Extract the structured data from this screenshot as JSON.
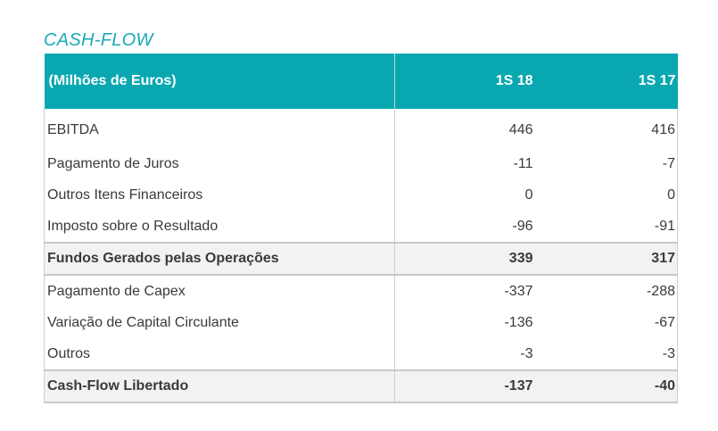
{
  "section_title": "CASH-FLOW",
  "table": {
    "header": {
      "label": "(Milhões de Euros)",
      "col_a": "1S 18",
      "col_b": "1S 17"
    },
    "rows": [
      {
        "label": "EBITDA",
        "a": "446",
        "b": "416"
      },
      {
        "label": "Pagamento de Juros",
        "a": "-11",
        "b": "-7"
      },
      {
        "label": "Outros Itens Financeiros",
        "a": "0",
        "b": "0"
      },
      {
        "label": "Imposto sobre o Resultado",
        "a": "-96",
        "b": "-91"
      },
      {
        "label": "Fundos Gerados pelas Operações",
        "a": "339",
        "b": "317"
      },
      {
        "label": "Pagamento de Capex",
        "a": "-337",
        "b": "-288"
      },
      {
        "label": "Variação de Capital Circulante",
        "a": "-136",
        "b": "-67"
      },
      {
        "label": "Outros",
        "a": "-3",
        "b": "-3"
      },
      {
        "label": "Cash-Flow Libertado",
        "a": "-137",
        "b": "-40"
      }
    ]
  },
  "colors": {
    "accent": "#19aab5",
    "header_bg": "#09a8b1",
    "subtotal_bg": "#f2f2f2"
  }
}
